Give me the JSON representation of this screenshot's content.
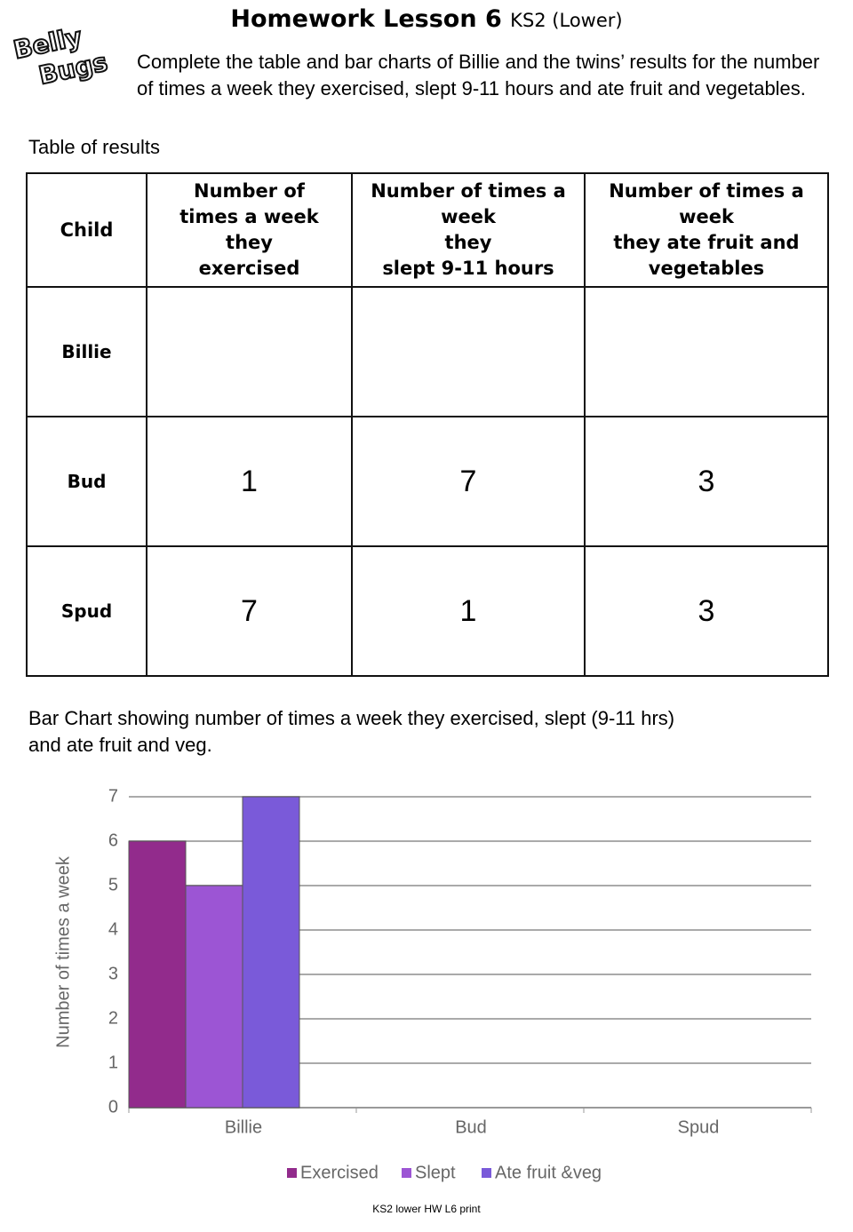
{
  "header": {
    "title": "Homework Lesson 6",
    "title_suffix": "KS2 (Lower)",
    "logo": [
      "Belly",
      "Bugs"
    ],
    "instructions": "Complete the table and bar charts of Billie and the twins’ results for the number of times a week they exercised, slept 9-11 hours and ate fruit and vegetables."
  },
  "table": {
    "caption": "Table of  results",
    "columns": [
      "Child",
      "Number of\ntimes a week\nthey\nexercised",
      "Number of times a\nweek\nthey\nslept 9-11 hours",
      "Number of times a\nweek\nthey ate fruit and\nvegetables"
    ],
    "rows": [
      [
        "Billie",
        null,
        null,
        null
      ],
      [
        "Bud",
        "1",
        "7",
        "3"
      ],
      [
        "Spud",
        "7",
        "1",
        "3"
      ]
    ]
  },
  "chart_caption": "Bar Chart showing number of  times a week they exercised, slept (9-11 hrs)\nand ate fruit and veg.",
  "chart_data": {
    "type": "bar",
    "categories": [
      "Billie",
      "Bud",
      "Spud"
    ],
    "series": [
      {
        "name": "Exercised",
        "color": "#922b8c",
        "values": [
          6,
          null,
          null
        ]
      },
      {
        "name": "Slept",
        "color": "#9c55d4",
        "values": [
          5,
          null,
          null
        ]
      },
      {
        "name": "Ate fruit &veg",
        "color": "#7a5ad9",
        "values": [
          7,
          null,
          null
        ]
      }
    ],
    "y_label": "Number of times a week",
    "ylim": [
      0,
      7
    ],
    "yticks": [
      0,
      1,
      2,
      3,
      4,
      5,
      6,
      7
    ],
    "grid": true
  },
  "footer": "KS2 lower HW L6 print"
}
